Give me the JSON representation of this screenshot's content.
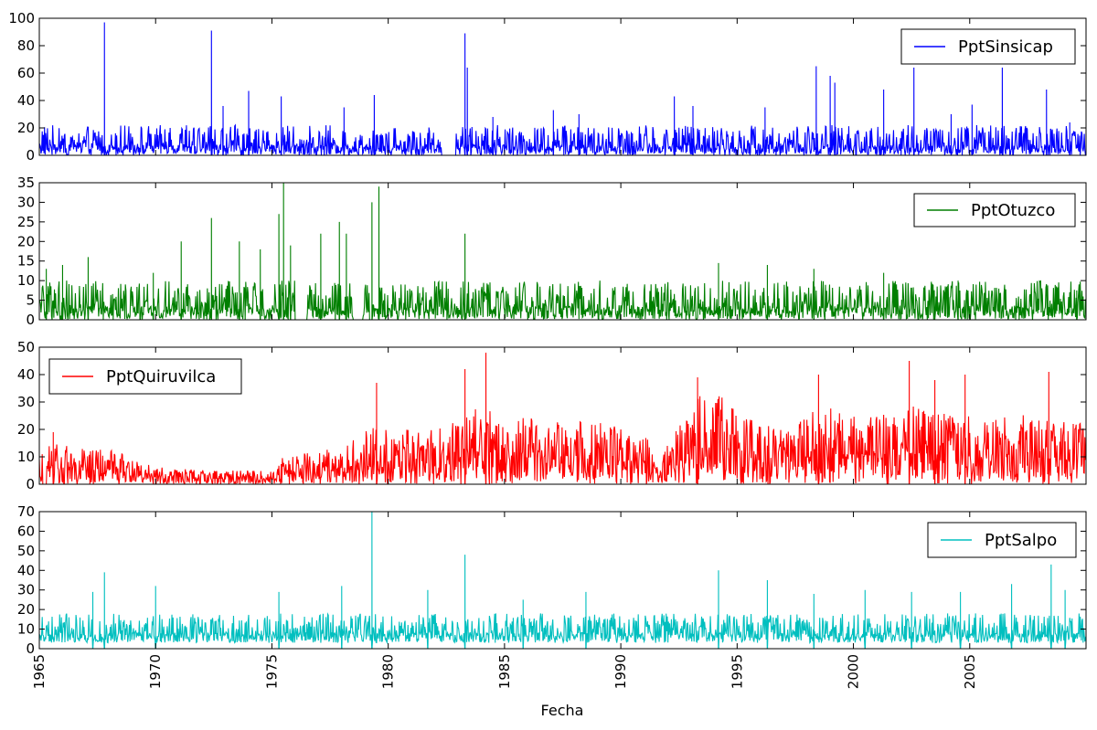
{
  "figure": {
    "xlabel": "Fecha"
  },
  "chart_data": [
    {
      "type": "line",
      "series_name": "PptSinsicap",
      "color": "#0000ff",
      "legend_position": "upper right",
      "ylim": [
        0,
        100
      ],
      "yticks": [
        0,
        20,
        40,
        60,
        80,
        100
      ],
      "xlim": [
        1965,
        2010
      ],
      "typical_range": [
        0,
        22
      ],
      "peaks": [
        {
          "x": 1967.8,
          "y": 97
        },
        {
          "x": 1972.4,
          "y": 91
        },
        {
          "x": 1972.9,
          "y": 36
        },
        {
          "x": 1974.0,
          "y": 47
        },
        {
          "x": 1975.4,
          "y": 43
        },
        {
          "x": 1978.1,
          "y": 35
        },
        {
          "x": 1979.4,
          "y": 44
        },
        {
          "x": 1983.3,
          "y": 89
        },
        {
          "x": 1983.4,
          "y": 64
        },
        {
          "x": 1984.5,
          "y": 28
        },
        {
          "x": 1987.1,
          "y": 33
        },
        {
          "x": 1988.2,
          "y": 30
        },
        {
          "x": 1990.5,
          "y": 16
        },
        {
          "x": 1992.3,
          "y": 43
        },
        {
          "x": 1993.1,
          "y": 36
        },
        {
          "x": 1996.2,
          "y": 35
        },
        {
          "x": 1998.4,
          "y": 65
        },
        {
          "x": 1999.0,
          "y": 58
        },
        {
          "x": 1999.2,
          "y": 53
        },
        {
          "x": 2001.3,
          "y": 48
        },
        {
          "x": 2002.6,
          "y": 64
        },
        {
          "x": 2004.2,
          "y": 30
        },
        {
          "x": 2005.1,
          "y": 37
        },
        {
          "x": 2006.4,
          "y": 64
        },
        {
          "x": 2008.3,
          "y": 48
        },
        {
          "x": 2009.3,
          "y": 24
        }
      ],
      "gaps": [
        [
          1982.3,
          1982.9
        ]
      ]
    },
    {
      "type": "line",
      "series_name": "PptOtuzco",
      "color": "#007f00",
      "legend_position": "upper right",
      "ylim": [
        0,
        35
      ],
      "yticks": [
        0,
        5,
        10,
        15,
        20,
        25,
        30,
        35
      ],
      "xlim": [
        1965,
        2010
      ],
      "typical_range": [
        0,
        10
      ],
      "peaks": [
        {
          "x": 1965.3,
          "y": 13
        },
        {
          "x": 1966.0,
          "y": 14
        },
        {
          "x": 1967.1,
          "y": 16
        },
        {
          "x": 1969.9,
          "y": 12
        },
        {
          "x": 1971.1,
          "y": 20
        },
        {
          "x": 1972.4,
          "y": 26
        },
        {
          "x": 1973.6,
          "y": 20
        },
        {
          "x": 1974.5,
          "y": 18
        },
        {
          "x": 1975.3,
          "y": 27
        },
        {
          "x": 1975.5,
          "y": 35
        },
        {
          "x": 1975.8,
          "y": 19
        },
        {
          "x": 1977.1,
          "y": 22
        },
        {
          "x": 1977.9,
          "y": 25
        },
        {
          "x": 1978.2,
          "y": 22
        },
        {
          "x": 1979.3,
          "y": 30
        },
        {
          "x": 1979.6,
          "y": 34
        },
        {
          "x": 1983.3,
          "y": 22
        },
        {
          "x": 1994.2,
          "y": 14.5
        },
        {
          "x": 1996.3,
          "y": 14
        },
        {
          "x": 1998.3,
          "y": 13
        },
        {
          "x": 2001.3,
          "y": 12
        },
        {
          "x": 2004.5,
          "y": 10
        },
        {
          "x": 2009.6,
          "y": 7.5
        }
      ],
      "gaps": [
        [
          1976.0,
          1976.5
        ],
        [
          1978.5,
          1978.9
        ],
        [
          1979.2,
          1979.3
        ]
      ]
    },
    {
      "type": "line",
      "series_name": "PptQuiruvilca",
      "color": "#ff0000",
      "legend_position": "upper left",
      "ylim": [
        0,
        50
      ],
      "yticks": [
        0,
        10,
        20,
        30,
        40,
        50
      ],
      "xlim": [
        1965,
        2010
      ],
      "envelope": [
        {
          "x": 1965.0,
          "y": 10
        },
        {
          "x": 1965.5,
          "y": 16
        },
        {
          "x": 1966.5,
          "y": 12
        },
        {
          "x": 1967.5,
          "y": 13
        },
        {
          "x": 1968.5,
          "y": 11
        },
        {
          "x": 1969.5,
          "y": 7
        },
        {
          "x": 1970.5,
          "y": 5.5
        },
        {
          "x": 1972.0,
          "y": 5
        },
        {
          "x": 1973.5,
          "y": 5
        },
        {
          "x": 1975.0,
          "y": 4.5
        },
        {
          "x": 1975.5,
          "y": 10
        },
        {
          "x": 1976.5,
          "y": 11
        },
        {
          "x": 1978.0,
          "y": 13
        },
        {
          "x": 1979.0,
          "y": 20
        },
        {
          "x": 1980.0,
          "y": 20
        },
        {
          "x": 1981.0,
          "y": 19
        },
        {
          "x": 1982.0,
          "y": 19
        },
        {
          "x": 1983.0,
          "y": 22
        },
        {
          "x": 1984.0,
          "y": 30
        },
        {
          "x": 1985.0,
          "y": 23
        },
        {
          "x": 1986.0,
          "y": 24
        },
        {
          "x": 1987.0,
          "y": 22
        },
        {
          "x": 1988.0,
          "y": 22
        },
        {
          "x": 1989.0,
          "y": 22
        },
        {
          "x": 1990.0,
          "y": 20
        },
        {
          "x": 1991.0,
          "y": 19
        },
        {
          "x": 1991.6,
          "y": 6
        },
        {
          "x": 1992.0,
          "y": 15
        },
        {
          "x": 1993.0,
          "y": 25
        },
        {
          "x": 1993.5,
          "y": 33
        },
        {
          "x": 1994.5,
          "y": 30
        },
        {
          "x": 1995.5,
          "y": 23
        },
        {
          "x": 1996.5,
          "y": 20
        },
        {
          "x": 1997.5,
          "y": 20
        },
        {
          "x": 1998.5,
          "y": 28
        },
        {
          "x": 1999.5,
          "y": 25
        },
        {
          "x": 2000.5,
          "y": 25
        },
        {
          "x": 2001.5,
          "y": 27
        },
        {
          "x": 2002.5,
          "y": 28
        },
        {
          "x": 2003.5,
          "y": 25
        },
        {
          "x": 2004.5,
          "y": 25
        },
        {
          "x": 2005.5,
          "y": 23
        },
        {
          "x": 2006.5,
          "y": 24
        },
        {
          "x": 2007.5,
          "y": 24
        },
        {
          "x": 2008.5,
          "y": 22
        },
        {
          "x": 2010.0,
          "y": 22
        }
      ],
      "peaks": [
        {
          "x": 1965.6,
          "y": 19
        },
        {
          "x": 1979.5,
          "y": 37
        },
        {
          "x": 1983.3,
          "y": 42
        },
        {
          "x": 1984.2,
          "y": 48
        },
        {
          "x": 1993.3,
          "y": 39
        },
        {
          "x": 1998.5,
          "y": 40
        },
        {
          "x": 2002.4,
          "y": 45
        },
        {
          "x": 2003.5,
          "y": 38
        },
        {
          "x": 2004.8,
          "y": 40
        },
        {
          "x": 2008.4,
          "y": 41
        }
      ],
      "gaps": [
        [
          1965.15,
          1965.3
        ]
      ]
    },
    {
      "type": "line",
      "series_name": "PptSalpo",
      "color": "#00bfbf",
      "legend_position": "upper right",
      "ylim": [
        0,
        70
      ],
      "yticks": [
        0,
        10,
        20,
        30,
        40,
        50,
        60,
        70
      ],
      "xlim": [
        1965,
        2010
      ],
      "typical_range": [
        3,
        18
      ],
      "peaks": [
        {
          "x": 1967.3,
          "y": 29
        },
        {
          "x": 1967.8,
          "y": 39
        },
        {
          "x": 1970.0,
          "y": 32
        },
        {
          "x": 1975.3,
          "y": 29
        },
        {
          "x": 1978.0,
          "y": 32
        },
        {
          "x": 1979.3,
          "y": 70
        },
        {
          "x": 1981.7,
          "y": 30
        },
        {
          "x": 1983.3,
          "y": 48
        },
        {
          "x": 1985.8,
          "y": 25
        },
        {
          "x": 1988.5,
          "y": 29
        },
        {
          "x": 1994.2,
          "y": 40
        },
        {
          "x": 1996.3,
          "y": 35
        },
        {
          "x": 1998.3,
          "y": 28
        },
        {
          "x": 2000.5,
          "y": 30
        },
        {
          "x": 2002.5,
          "y": 29
        },
        {
          "x": 2004.6,
          "y": 29
        },
        {
          "x": 2006.8,
          "y": 33
        },
        {
          "x": 2008.5,
          "y": 43
        },
        {
          "x": 2009.1,
          "y": 30
        }
      ],
      "gaps": []
    }
  ],
  "xticks": [
    1965,
    1970,
    1975,
    1980,
    1985,
    1990,
    1995,
    2000,
    2005
  ]
}
